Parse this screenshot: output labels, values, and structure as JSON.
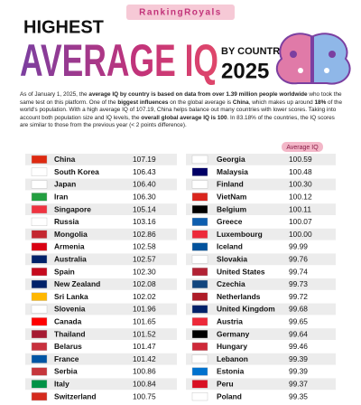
{
  "header": {
    "brand": "RankingRoyals",
    "title_top": "HIGHEST",
    "title_main": "AVERAGE IQ",
    "title_sub": "BY COUNTRY",
    "year": "2025"
  },
  "intro": [
    {
      "text": "As of January 1, 2025, the ",
      "bold": false
    },
    {
      "text": "average IQ by country is based on data from over 1.39 million people worldwide",
      "bold": true
    },
    {
      "text": " who took the same test on this platform. One of the ",
      "bold": false
    },
    {
      "text": "biggest influences",
      "bold": true
    },
    {
      "text": " on the global average is ",
      "bold": false
    },
    {
      "text": "China",
      "bold": true
    },
    {
      "text": ", which makes up around ",
      "bold": false
    },
    {
      "text": "18%",
      "bold": true
    },
    {
      "text": " of the world's population. With a high average IQ of 107.19, China helps balance out many countries with lower scores. Taking into account both population size and IQ levels, the ",
      "bold": false
    },
    {
      "text": "overall global average IQ is 100",
      "bold": true
    },
    {
      "text": ". In 83.18% of the countries, the IQ scores are similar to those from the previous year (< 2 points difference).",
      "bold": false
    }
  ],
  "table": {
    "value_header": "Average IQ",
    "columns": [
      [
        [
          "China",
          "107.19"
        ],
        [
          "South Korea",
          "106.43"
        ],
        [
          "Japan",
          "106.40"
        ],
        [
          "Iran",
          "106.30"
        ],
        [
          "Singapore",
          "105.14"
        ],
        [
          "Russia",
          "103.16"
        ],
        [
          "Mongolia",
          "102.86"
        ],
        [
          "Armenia",
          "102.58"
        ],
        [
          "Australia",
          "102.57"
        ],
        [
          "Spain",
          "102.30"
        ],
        [
          "New Zealand",
          "102.08"
        ],
        [
          "Sri Lanka",
          "102.02"
        ],
        [
          "Slovenia",
          "101.96"
        ],
        [
          "Canada",
          "101.65"
        ],
        [
          "Thailand",
          "101.52"
        ],
        [
          "Belarus",
          "101.47"
        ],
        [
          "France",
          "101.42"
        ],
        [
          "Serbia",
          "100.86"
        ],
        [
          "Italy",
          "100.84"
        ],
        [
          "Switzerland",
          "100.75"
        ]
      ],
      [
        [
          "Georgia",
          "100.59"
        ],
        [
          "Malaysia",
          "100.48"
        ],
        [
          "Finland",
          "100.30"
        ],
        [
          "VietNam",
          "100.12"
        ],
        [
          "Belgium",
          "100.11"
        ],
        [
          "Greece",
          "100.07"
        ],
        [
          "Luxembourg",
          "100.00"
        ],
        [
          "Iceland",
          "99.99"
        ],
        [
          "Slovakia",
          "99.76"
        ],
        [
          "United States",
          "99.74"
        ],
        [
          "Czechia",
          "99.73"
        ],
        [
          "Netherlands",
          "99.72"
        ],
        [
          "United Kingdom",
          "99.68"
        ],
        [
          "Austria",
          "99.65"
        ],
        [
          "Germany",
          "99.64"
        ],
        [
          "Hungary",
          "99.46"
        ],
        [
          "Lebanon",
          "99.39"
        ],
        [
          "Estonia",
          "99.39"
        ],
        [
          "Peru",
          "99.37"
        ],
        [
          "Poland",
          "99.35"
        ]
      ]
    ]
  }
}
